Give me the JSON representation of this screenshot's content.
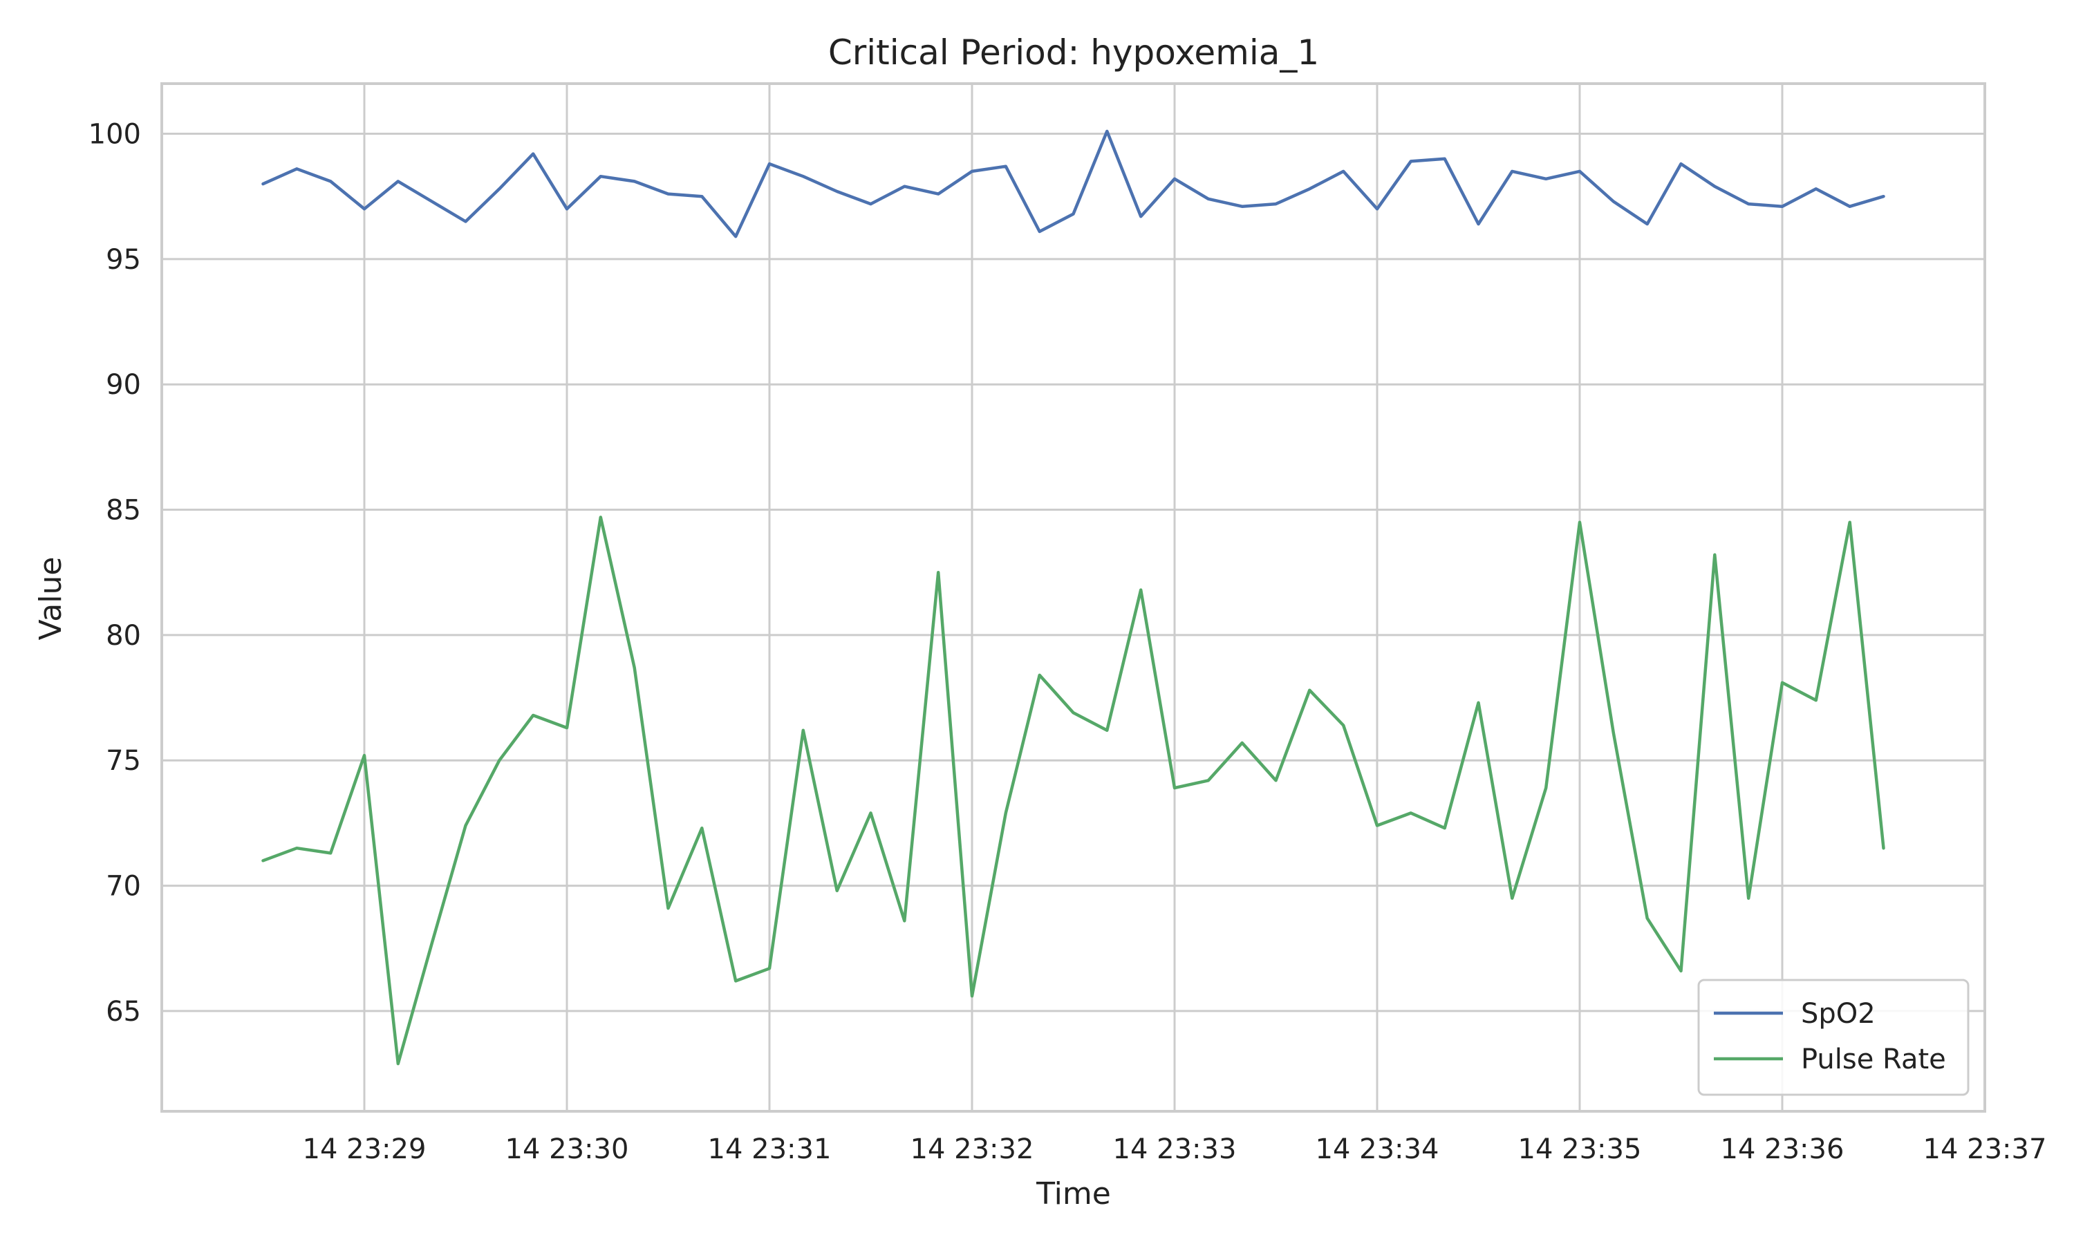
{
  "chart_data": {
    "type": "line",
    "title": "Critical Period: hypoxemia_1",
    "xlabel": "Time",
    "ylabel": "Value",
    "x_start": "14 23:28:30",
    "x_step_seconds": 10,
    "xlim": [
      "14 23:28:00",
      "14 23:37:00"
    ],
    "ylim": [
      61,
      102
    ],
    "x_ticks": [
      "14 23:29",
      "14 23:30",
      "14 23:31",
      "14 23:32",
      "14 23:33",
      "14 23:34",
      "14 23:35",
      "14 23:36",
      "14 23:37"
    ],
    "y_ticks": [
      65,
      70,
      75,
      80,
      85,
      90,
      95,
      100
    ],
    "grid": true,
    "legend_position": "lower-right",
    "series": [
      {
        "name": "SpO2",
        "color": "#4c72b0",
        "values": [
          98.0,
          98.6,
          98.1,
          97.0,
          98.1,
          97.3,
          96.5,
          97.8,
          99.2,
          97.0,
          98.3,
          98.1,
          97.6,
          97.5,
          95.9,
          98.8,
          98.3,
          97.7,
          97.2,
          97.9,
          97.6,
          98.5,
          98.7,
          96.1,
          96.8,
          100.1,
          96.7,
          98.2,
          97.4,
          97.1,
          97.2,
          97.8,
          98.5,
          97.0,
          98.9,
          99.0,
          96.4,
          98.5,
          98.2,
          98.5,
          97.3,
          96.4,
          98.8,
          97.9,
          97.2,
          97.1,
          97.8,
          97.1,
          97.5
        ]
      },
      {
        "name": "Pulse Rate",
        "color": "#55a868",
        "values": [
          71.0,
          71.5,
          71.3,
          75.2,
          62.9,
          67.7,
          72.4,
          75.0,
          76.8,
          76.3,
          84.7,
          78.7,
          69.1,
          72.3,
          66.2,
          66.7,
          76.2,
          69.8,
          72.9,
          68.6,
          82.5,
          65.6,
          72.9,
          78.4,
          76.9,
          76.2,
          81.8,
          73.9,
          74.2,
          75.7,
          74.2,
          77.8,
          76.4,
          72.4,
          72.9,
          72.3,
          77.3,
          69.5,
          73.9,
          84.5,
          76.1,
          68.7,
          66.6,
          83.2,
          69.5,
          78.1,
          77.4,
          84.5,
          71.5
        ]
      }
    ]
  }
}
